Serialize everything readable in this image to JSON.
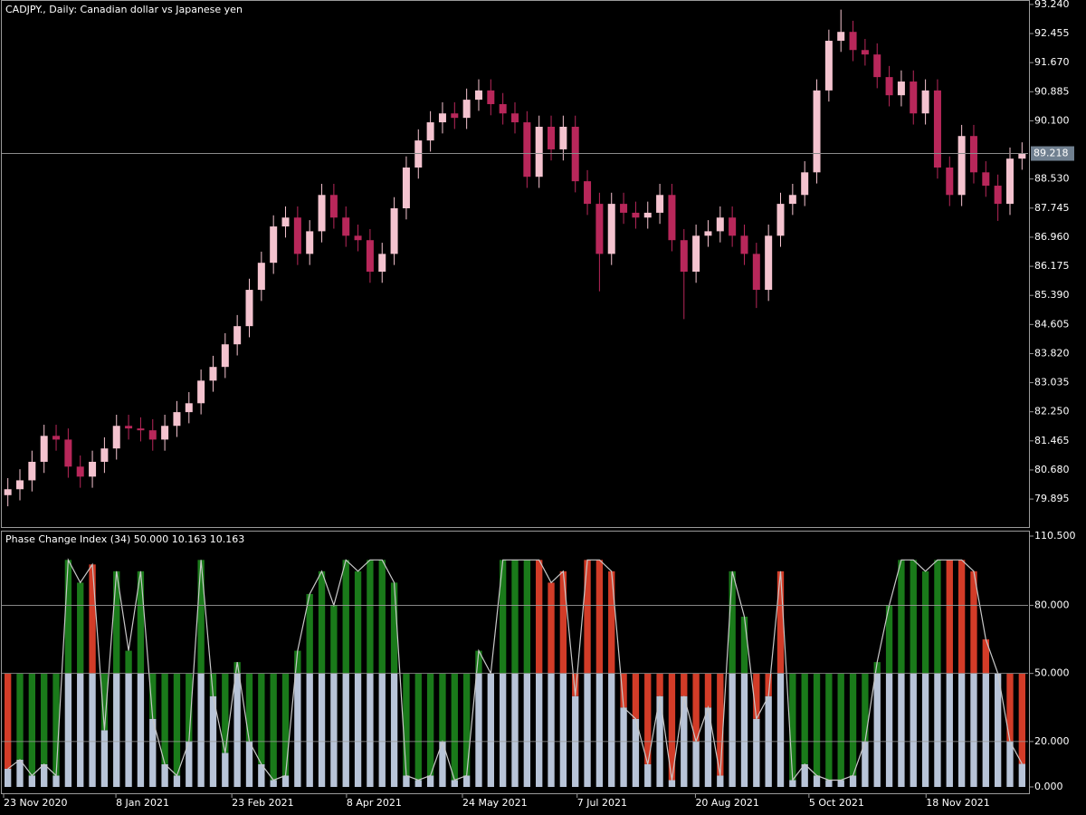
{
  "chart_data": [
    {
      "type": "candlestick",
      "title": "CADJPY., Daily:  Canadian dollar vs Japanese yen",
      "up_color": "#f4c3cf",
      "down_color": "#b8275a",
      "open": [
        80,
        80.16,
        80.4,
        80.9,
        81.6,
        81.5,
        80.77,
        80.5,
        80.9,
        81.26,
        81.87,
        81.8,
        81.75,
        81.5,
        81.87,
        82.24,
        82.48,
        83.09,
        83.46,
        84.07,
        84.56,
        85.54,
        86.27,
        87.25,
        87.49,
        86.51,
        87.12,
        88.1,
        87.49,
        87,
        86.88,
        86.03,
        86.51,
        87.74,
        88.84,
        89.57,
        90.06,
        90.3,
        90.18,
        90.67,
        90.92,
        90.55,
        90.3,
        90.06,
        88.59,
        89.94,
        89.33,
        89.94,
        88.47,
        87.86,
        86.51,
        87.86,
        87.62,
        87.49,
        87.62,
        88.1,
        86.88,
        86.03,
        87,
        87.12,
        87.49,
        87,
        86.51,
        85.54,
        87,
        87.86,
        88.1,
        88.71,
        90.92,
        92.26,
        92.5,
        92.01,
        91.89,
        91.28,
        90.79,
        91.16,
        90.3,
        90.92,
        88.84,
        88.1,
        89.69,
        88.71,
        88.35,
        87.86,
        89.08
      ],
      "high": [
        80.46,
        80.7,
        81.2,
        81.9,
        81.9,
        81.8,
        81.07,
        81.2,
        81.56,
        82.17,
        82.17,
        82.1,
        82.05,
        82.17,
        82.54,
        82.78,
        83.39,
        83.76,
        84.37,
        84.86,
        85.84,
        86.57,
        87.55,
        87.79,
        87.79,
        87.42,
        88.4,
        88.4,
        87.79,
        87.3,
        87.18,
        86.81,
        88.04,
        89.14,
        89.87,
        90.36,
        90.6,
        90.6,
        90.97,
        91.22,
        91.22,
        90.85,
        90.6,
        90.36,
        90.24,
        90.24,
        90.24,
        90.24,
        88.77,
        88.16,
        88.16,
        88.16,
        87.92,
        87.92,
        88.4,
        88.4,
        87.18,
        87.3,
        87.42,
        87.79,
        87.79,
        87.3,
        86.81,
        87.3,
        88.16,
        88.4,
        89.01,
        91.22,
        92.56,
        93.1,
        92.8,
        92.31,
        92.19,
        91.58,
        91.46,
        91.46,
        91.22,
        91.22,
        89.14,
        89.99,
        89.99,
        89.01,
        88.65,
        89.38,
        89.52
      ],
      "low": [
        79.7,
        79.86,
        80.1,
        80.6,
        81.2,
        80.47,
        80.2,
        80.2,
        80.6,
        80.96,
        81.5,
        81.45,
        81.2,
        81.2,
        81.57,
        81.94,
        82.18,
        82.79,
        83.16,
        83.77,
        84.26,
        85.24,
        85.97,
        86.95,
        86.21,
        86.21,
        86.82,
        87.19,
        86.7,
        86.58,
        85.73,
        85.73,
        86.21,
        87.44,
        88.54,
        89.27,
        89.76,
        89.88,
        89.88,
        90.37,
        90.25,
        90,
        89.76,
        88.29,
        88.29,
        89.03,
        89.03,
        88.17,
        87.56,
        85.5,
        86.21,
        87.32,
        87.19,
        87.19,
        87.32,
        86.58,
        84.75,
        85.73,
        86.7,
        86.82,
        86.7,
        86.21,
        85.05,
        85.24,
        86.7,
        87.56,
        87.8,
        88.41,
        90.62,
        91.96,
        91.71,
        91.59,
        90.98,
        90.49,
        90.49,
        90,
        90,
        88.54,
        87.8,
        87.8,
        88.41,
        88.05,
        87.4,
        87.56,
        88.78
      ],
      "close": [
        80.16,
        80.4,
        80.9,
        81.6,
        81.5,
        80.77,
        80.5,
        80.9,
        81.26,
        81.87,
        81.8,
        81.75,
        81.5,
        81.87,
        82.24,
        82.48,
        83.09,
        83.46,
        84.07,
        84.56,
        85.54,
        86.27,
        87.25,
        87.49,
        86.51,
        87.12,
        88.1,
        87.49,
        87,
        86.88,
        86.03,
        86.51,
        87.74,
        88.84,
        89.57,
        90.06,
        90.3,
        90.18,
        90.67,
        90.92,
        90.55,
        90.3,
        90.06,
        88.59,
        89.94,
        89.33,
        89.94,
        88.47,
        87.86,
        86.51,
        87.86,
        87.62,
        87.49,
        87.62,
        88.1,
        86.88,
        86.03,
        87,
        87.12,
        87.49,
        87,
        86.51,
        85.54,
        87,
        87.86,
        88.1,
        88.71,
        90.92,
        92.26,
        92.5,
        92.01,
        91.89,
        91.28,
        90.79,
        91.16,
        90.3,
        90.92,
        88.84,
        88.1,
        89.69,
        88.71,
        88.35,
        87.86,
        89.08,
        89.22
      ],
      "ylim": [
        79.14,
        93.36
      ],
      "yticks": [
        {
          "value": 93.24,
          "label": "93.240"
        },
        92.455,
        {
          "value": 91.67,
          "label": "91.670"
        },
        90.885,
        {
          "value": 90.1,
          "label": "90.100"
        },
        {
          "value": 88.53,
          "label": "88.530"
        },
        87.745,
        {
          "value": 86.96,
          "label": "86.960"
        },
        86.175,
        {
          "value": 85.39,
          "label": "85.390"
        },
        84.605,
        {
          "value": 83.82,
          "label": "83.820"
        },
        83.035,
        {
          "value": 82.25,
          "label": "82.250"
        },
        81.465,
        {
          "value": 80.68,
          "label": "80.680"
        },
        79.895
      ],
      "current_price": 89.218
    },
    {
      "type": "pci",
      "title": "Phase Change Index (34) 50.000 10.163 10.163",
      "values": [
        8,
        12,
        5,
        10,
        5,
        100,
        90,
        98,
        25,
        95,
        60,
        95,
        30,
        10,
        5,
        20,
        100,
        40,
        15,
        55,
        20,
        10,
        3,
        5,
        60,
        85,
        95,
        80,
        100,
        95,
        100,
        100,
        90,
        5,
        3,
        5,
        20,
        3,
        5,
        60,
        50,
        100,
        100,
        100,
        100,
        90,
        95,
        40,
        100,
        100,
        95,
        35,
        30,
        10,
        40,
        3,
        40,
        20,
        35,
        5,
        95,
        75,
        30,
        40,
        95,
        3,
        10,
        5,
        3,
        3,
        5,
        20,
        55,
        80,
        100,
        100,
        95,
        100,
        100,
        100,
        95,
        65,
        50,
        20,
        10.163
      ],
      "bar_colors": [
        "#d23c28",
        "#1a7a1a",
        "#1a7a1a",
        "#1a7a1a",
        "#1a7a1a",
        "#1a7a1a",
        "#1a7a1a",
        "#d23c28",
        "#1a7a1a",
        "#1a7a1a",
        "#1a7a1a",
        "#1a7a1a",
        "#1a7a1a",
        "#1a7a1a",
        "#1a7a1a",
        "#1a7a1a",
        "#1a7a1a",
        "#1a7a1a",
        "#1a7a1a",
        "#1a7a1a",
        "#1a7a1a",
        "#1a7a1a",
        "#1a7a1a",
        "#1a7a1a",
        "#1a7a1a",
        "#1a7a1a",
        "#1a7a1a",
        "#1a7a1a",
        "#1a7a1a",
        "#1a7a1a",
        "#1a7a1a",
        "#1a7a1a",
        "#1a7a1a",
        "#1a7a1a",
        "#1a7a1a",
        "#1a7a1a",
        "#1a7a1a",
        "#1a7a1a",
        "#1a7a1a",
        "#1a7a1a",
        "#1a7a1a",
        "#1a7a1a",
        "#1a7a1a",
        "#1a7a1a",
        "#d23c28",
        "#d23c28",
        "#d23c28",
        "#d23c28",
        "#d23c28",
        "#d23c28",
        "#d23c28",
        "#d23c28",
        "#d23c28",
        "#d23c28",
        "#d23c28",
        "#d23c28",
        "#d23c28",
        "#d23c28",
        "#d23c28",
        "#d23c28",
        "#1a7a1a",
        "#1a7a1a",
        "#d23c28",
        "#d23c28",
        "#d23c28",
        "#1a7a1a",
        "#1a7a1a",
        "#1a7a1a",
        "#1a7a1a",
        "#1a7a1a",
        "#1a7a1a",
        "#1a7a1a",
        "#1a7a1a",
        "#1a7a1a",
        "#1a7a1a",
        "#1a7a1a",
        "#1a7a1a",
        "#1a7a1a",
        "#d23c28",
        "#d23c28",
        "#d23c28",
        "#d23c28",
        "#d23c28",
        "#d23c28",
        "#d23c28"
      ],
      "fill_color": "#b8c4d8",
      "line_color": "#c8c8c8",
      "ylim": [
        0,
        110.5
      ],
      "yticks": [
        {
          "value": 0,
          "label": "0.000"
        },
        {
          "value": 20,
          "label": "20.000"
        },
        {
          "value": 50,
          "label": "50.000"
        },
        {
          "value": 80,
          "label": "80.000"
        },
        {
          "value": 110.5,
          "label": "110.500"
        }
      ],
      "xticks": [
        {
          "value": 0,
          "label": "23 Nov 2020"
        },
        {
          "value": 9.3,
          "label": "8 Jan 2021"
        },
        {
          "value": 18.9,
          "label": "23 Feb 2021"
        },
        {
          "value": 28.4,
          "label": "8 Apr 2021"
        },
        {
          "value": 38,
          "label": "24 May 2021"
        },
        {
          "value": 47.5,
          "label": "7 Jul 2021"
        },
        {
          "value": 57.3,
          "label": "20 Aug 2021"
        },
        {
          "value": 66.7,
          "label": "5 Oct 2021"
        },
        {
          "value": 76.4,
          "label": "18 Nov 2021"
        }
      ]
    }
  ]
}
